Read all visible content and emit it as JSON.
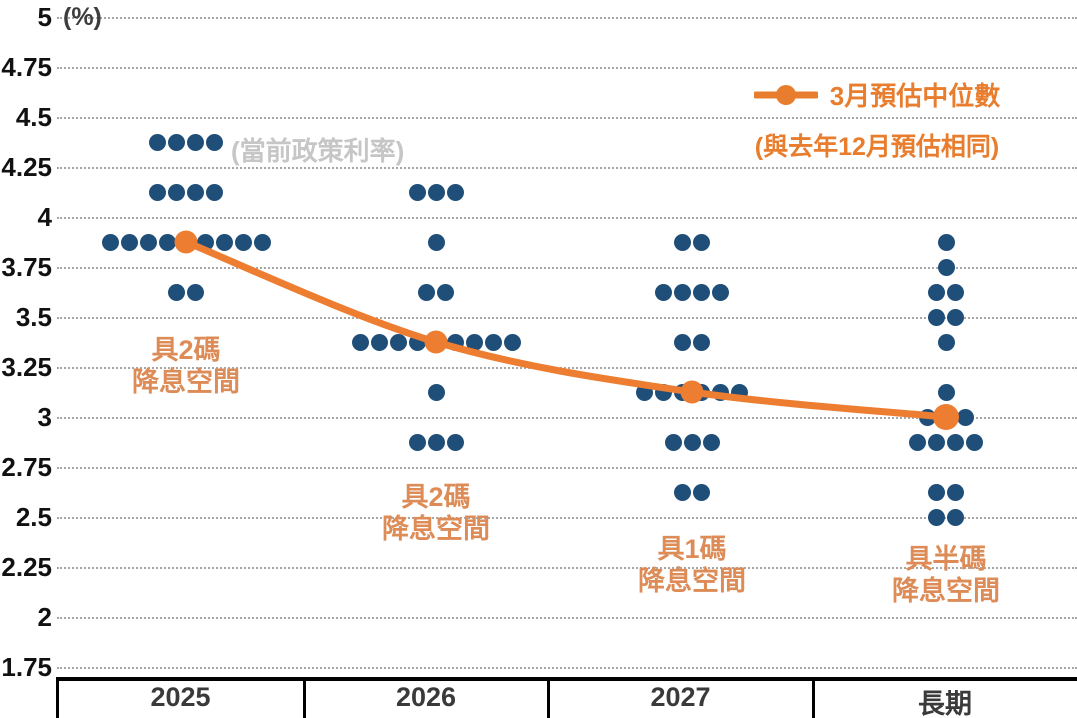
{
  "chart_data": {
    "type": "scatter",
    "subtype": "fomc-dot-plot",
    "title": "",
    "unit_label": "(%)",
    "categories": [
      "2025",
      "2026",
      "2027",
      "長期"
    ],
    "y_axis": {
      "min": 1.75,
      "max": 5,
      "step": 0.25,
      "tick_labels": [
        "5",
        "4.75",
        "4.5",
        "4.25",
        "4",
        "3.75",
        "3.5",
        "3.25",
        "3",
        "2.75",
        "2.5",
        "2.25",
        "2",
        "1.75"
      ],
      "grid": "dotted"
    },
    "dots": [
      {
        "category": "2025",
        "distribution": [
          {
            "rate": 4.375,
            "count": 4
          },
          {
            "rate": 4.125,
            "count": 4
          },
          {
            "rate": 3.875,
            "count": 9
          },
          {
            "rate": 3.625,
            "count": 2
          }
        ]
      },
      {
        "category": "2026",
        "distribution": [
          {
            "rate": 4.125,
            "count": 3
          },
          {
            "rate": 3.875,
            "count": 1
          },
          {
            "rate": 3.625,
            "count": 2
          },
          {
            "rate": 3.375,
            "count": 9
          },
          {
            "rate": 3.125,
            "count": 1
          },
          {
            "rate": 2.875,
            "count": 3
          }
        ]
      },
      {
        "category": "2027",
        "distribution": [
          {
            "rate": 3.875,
            "count": 2
          },
          {
            "rate": 3.625,
            "count": 4
          },
          {
            "rate": 3.375,
            "count": 2
          },
          {
            "rate": 3.125,
            "count": 6
          },
          {
            "rate": 2.875,
            "count": 3
          },
          {
            "rate": 2.625,
            "count": 2
          }
        ]
      },
      {
        "category": "長期",
        "distribution": [
          {
            "rate": 3.875,
            "count": 1
          },
          {
            "rate": 3.75,
            "count": 1
          },
          {
            "rate": 3.625,
            "count": 2
          },
          {
            "rate": 3.5,
            "count": 2
          },
          {
            "rate": 3.375,
            "count": 1
          },
          {
            "rate": 3.125,
            "count": 1
          },
          {
            "rate": 3.0,
            "count": 3
          },
          {
            "rate": 2.875,
            "count": 4
          },
          {
            "rate": 2.625,
            "count": 2
          },
          {
            "rate": 2.5,
            "count": 2
          }
        ]
      }
    ],
    "median_series": {
      "name": "3月預估中位數",
      "values": [
        3.875,
        3.375,
        3.125,
        3.0
      ]
    },
    "legend_position": "top-right",
    "annotations": {
      "current_policy_rate": "(當前政策利率)",
      "column_notes": [
        {
          "category": "2025",
          "line1": "具2碼",
          "line2": "降息空間"
        },
        {
          "category": "2026",
          "line1": "具2碼",
          "line2": "降息空間"
        },
        {
          "category": "2027",
          "line1": "具1碼",
          "line2": "降息空間"
        },
        {
          "category": "長期",
          "line1": "具半碼",
          "line2": "降息空間"
        }
      ]
    }
  },
  "legend": {
    "label": "3月預估中位數",
    "sublabel": "(與去年12月預估相同)"
  },
  "colors": {
    "dot_blue": "#1f4e79",
    "median_orange": "#ed7d31",
    "legend_orange": "#e87d2e",
    "note_orange": "#dd8c57",
    "note_gray": "#c6c6c6",
    "gridline_gray": "#a6a6a6"
  }
}
